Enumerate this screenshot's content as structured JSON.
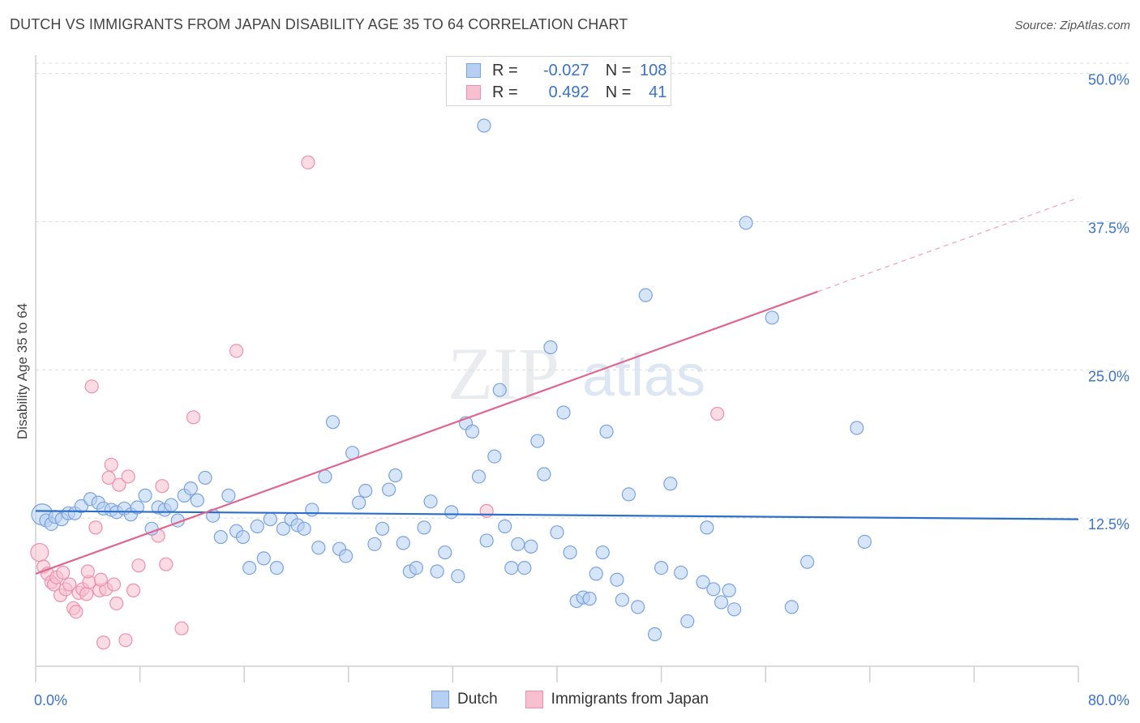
{
  "header": {
    "title": "DUTCH VS IMMIGRANTS FROM JAPAN DISABILITY AGE 35 TO 64 CORRELATION CHART",
    "source": "Source: ZipAtlas.com"
  },
  "legend": {
    "rows": [
      {
        "r_label": "R =",
        "r_value": "-0.027",
        "n_label": "N =",
        "n_value": "108"
      },
      {
        "r_label": "R =",
        "r_value": "0.492",
        "n_label": "N =",
        "n_value": "41"
      }
    ]
  },
  "watermark": {
    "zip": "ZIP",
    "atlas": "atlas"
  },
  "colors": {
    "dutch_fill": "#b7cff2",
    "dutch_stroke": "#7aa3de",
    "dutch_line": "#2b6fcb",
    "japan_fill": "#f7c0d0",
    "japan_stroke": "#ee8fab",
    "japan_line": "#e0668f",
    "axis_text": "#3a73c8",
    "grid": "#dcdcdc"
  },
  "chart_data": {
    "type": "scatter",
    "title": "DUTCH VS IMMIGRANTS FROM JAPAN DISABILITY AGE 35 TO 64 CORRELATION CHART",
    "xlabel": "",
    "ylabel": "Disability Age 35 to 64",
    "xlim": [
      0,
      80
    ],
    "ylim": [
      0,
      51
    ],
    "x_tick_labels": [
      {
        "value": 0,
        "label": "0.0%"
      },
      {
        "value": 80,
        "label": "80.0%"
      }
    ],
    "y_tick_labels": [
      {
        "value": 12.5,
        "label": "12.5%"
      },
      {
        "value": 25,
        "label": "25.0%"
      },
      {
        "value": 37.5,
        "label": "37.5%"
      },
      {
        "value": 50,
        "label": "50.0%"
      }
    ],
    "series": [
      {
        "name": "Dutch",
        "r": -0.027,
        "n": 108,
        "trend": {
          "x0": 0,
          "y0": 13.1,
          "x1": 80,
          "y1": 12.4
        },
        "points": [
          [
            0.5,
            12.8
          ],
          [
            0.8,
            12.3
          ],
          [
            1.2,
            12.0
          ],
          [
            1.5,
            12.6
          ],
          [
            2.0,
            12.4
          ],
          [
            2.5,
            12.9
          ],
          [
            3.0,
            12.9
          ],
          [
            3.5,
            13.5
          ],
          [
            4.2,
            14.1
          ],
          [
            4.8,
            13.8
          ],
          [
            5.2,
            13.3
          ],
          [
            5.8,
            13.2
          ],
          [
            6.2,
            13.0
          ],
          [
            6.8,
            13.3
          ],
          [
            7.3,
            12.8
          ],
          [
            7.8,
            13.4
          ],
          [
            8.4,
            14.4
          ],
          [
            8.9,
            11.6
          ],
          [
            9.4,
            13.4
          ],
          [
            9.9,
            13.2
          ],
          [
            10.4,
            13.6
          ],
          [
            10.9,
            12.3
          ],
          [
            11.4,
            14.4
          ],
          [
            11.9,
            15.0
          ],
          [
            12.4,
            14.0
          ],
          [
            13.0,
            15.9
          ],
          [
            13.6,
            12.7
          ],
          [
            14.2,
            10.9
          ],
          [
            14.8,
            14.4
          ],
          [
            15.4,
            11.4
          ],
          [
            15.9,
            10.9
          ],
          [
            16.4,
            8.3
          ],
          [
            17.0,
            11.8
          ],
          [
            17.5,
            9.1
          ],
          [
            18.0,
            12.4
          ],
          [
            18.5,
            8.3
          ],
          [
            19.0,
            11.6
          ],
          [
            19.6,
            12.4
          ],
          [
            20.1,
            11.9
          ],
          [
            20.6,
            11.6
          ],
          [
            21.2,
            13.2
          ],
          [
            21.7,
            10.0
          ],
          [
            22.2,
            16.0
          ],
          [
            22.8,
            20.6
          ],
          [
            23.3,
            9.9
          ],
          [
            23.8,
            9.3
          ],
          [
            24.3,
            18.0
          ],
          [
            24.8,
            13.8
          ],
          [
            25.3,
            14.8
          ],
          [
            26.0,
            10.3
          ],
          [
            26.6,
            11.6
          ],
          [
            27.1,
            14.9
          ],
          [
            27.6,
            16.1
          ],
          [
            28.2,
            10.4
          ],
          [
            28.7,
            8.0
          ],
          [
            29.2,
            8.3
          ],
          [
            29.8,
            11.7
          ],
          [
            30.3,
            13.9
          ],
          [
            30.8,
            8.0
          ],
          [
            31.4,
            9.6
          ],
          [
            31.9,
            13.0
          ],
          [
            32.4,
            7.6
          ],
          [
            33.0,
            20.5
          ],
          [
            33.5,
            19.8
          ],
          [
            34.0,
            16.0
          ],
          [
            34.6,
            10.6
          ],
          [
            35.2,
            17.7
          ],
          [
            35.6,
            23.3
          ],
          [
            36.0,
            11.8
          ],
          [
            36.5,
            8.3
          ],
          [
            37.0,
            10.3
          ],
          [
            37.5,
            8.3
          ],
          [
            38.0,
            10.1
          ],
          [
            38.5,
            19.0
          ],
          [
            39.0,
            16.2
          ],
          [
            39.5,
            26.9
          ],
          [
            40.0,
            11.3
          ],
          [
            40.5,
            21.4
          ],
          [
            41.0,
            9.6
          ],
          [
            41.5,
            5.5
          ],
          [
            42.0,
            5.8
          ],
          [
            42.5,
            5.7
          ],
          [
            43.0,
            7.8
          ],
          [
            43.5,
            9.6
          ],
          [
            43.8,
            19.8
          ],
          [
            44.6,
            7.3
          ],
          [
            45.0,
            5.6
          ],
          [
            45.5,
            14.5
          ],
          [
            46.2,
            5.0
          ],
          [
            46.8,
            31.3
          ],
          [
            47.5,
            2.7
          ],
          [
            48.0,
            8.3
          ],
          [
            48.7,
            15.4
          ],
          [
            49.5,
            7.9
          ],
          [
            50.0,
            3.8
          ],
          [
            51.2,
            7.1
          ],
          [
            51.5,
            11.7
          ],
          [
            52.0,
            6.5
          ],
          [
            52.6,
            5.4
          ],
          [
            53.2,
            6.4
          ],
          [
            53.6,
            4.8
          ],
          [
            54.5,
            37.4
          ],
          [
            56.5,
            29.4
          ],
          [
            58.0,
            5.0
          ],
          [
            59.2,
            8.8
          ],
          [
            63.0,
            20.1
          ],
          [
            63.6,
            10.5
          ],
          [
            34.4,
            45.6
          ]
        ]
      },
      {
        "name": "Immigrants from Japan",
        "r": 0.492,
        "n": 41,
        "trend": {
          "x0": 0,
          "y0": 7.8,
          "x1": 60,
          "y1": 31.6,
          "dash_x1": 80,
          "dash_y1": 39.5
        },
        "points": [
          [
            0.3,
            9.6
          ],
          [
            0.6,
            8.4
          ],
          [
            0.9,
            7.8
          ],
          [
            1.2,
            7.1
          ],
          [
            1.4,
            6.9
          ],
          [
            1.6,
            7.5
          ],
          [
            1.9,
            6.0
          ],
          [
            2.1,
            7.9
          ],
          [
            2.3,
            6.5
          ],
          [
            2.6,
            6.9
          ],
          [
            2.9,
            4.9
          ],
          [
            3.1,
            4.6
          ],
          [
            3.3,
            6.2
          ],
          [
            3.6,
            6.5
          ],
          [
            3.9,
            6.1
          ],
          [
            4.1,
            7.1
          ],
          [
            4.3,
            23.6
          ],
          [
            4.6,
            11.7
          ],
          [
            4.9,
            6.4
          ],
          [
            5.2,
            2.0
          ],
          [
            5.4,
            6.5
          ],
          [
            5.6,
            15.9
          ],
          [
            5.8,
            17.0
          ],
          [
            6.0,
            6.9
          ],
          [
            6.2,
            5.3
          ],
          [
            6.4,
            15.3
          ],
          [
            6.9,
            2.2
          ],
          [
            7.1,
            16.0
          ],
          [
            7.9,
            8.5
          ],
          [
            7.5,
            6.4
          ],
          [
            9.4,
            11.0
          ],
          [
            9.7,
            15.2
          ],
          [
            10.0,
            8.6
          ],
          [
            11.2,
            3.2
          ],
          [
            12.1,
            21.0
          ],
          [
            15.4,
            26.6
          ],
          [
            20.9,
            42.5
          ],
          [
            34.6,
            13.1
          ],
          [
            52.3,
            21.3
          ],
          [
            4.0,
            8.0
          ],
          [
            5.0,
            7.3
          ]
        ]
      }
    ]
  },
  "bottom_legend": {
    "items": [
      {
        "label": "Dutch"
      },
      {
        "label": "Immigrants from Japan"
      }
    ]
  }
}
